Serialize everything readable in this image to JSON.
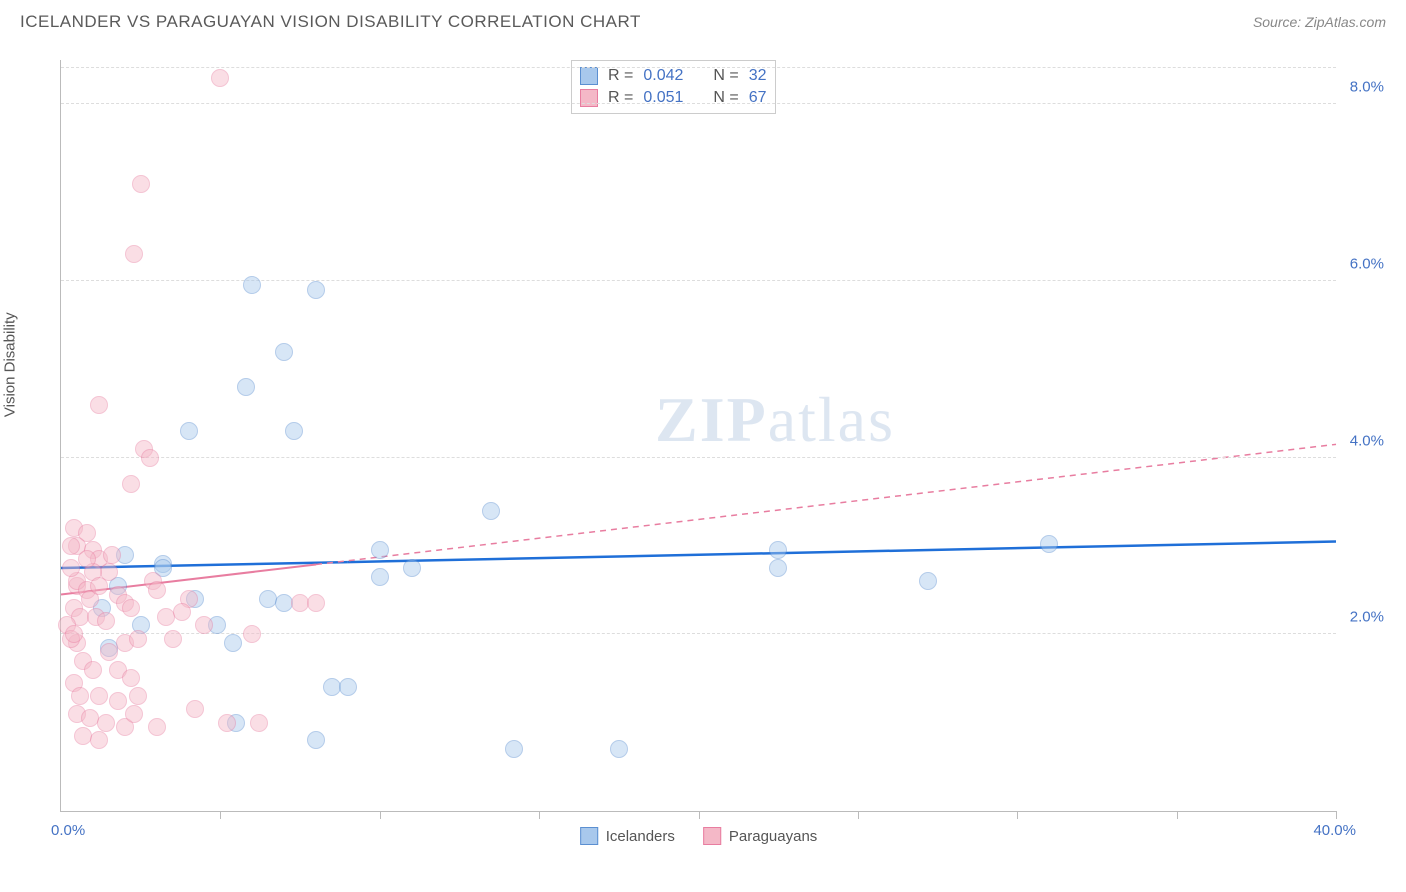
{
  "header": {
    "title": "ICELANDER VS PARAGUAYAN VISION DISABILITY CORRELATION CHART",
    "source": "Source: ZipAtlas.com"
  },
  "chart": {
    "type": "scatter",
    "ylabel": "Vision Disability",
    "xlim": [
      0,
      40
    ],
    "ylim": [
      0,
      8.5
    ],
    "xtick_positions": [
      0,
      5,
      10,
      15,
      20,
      25,
      30,
      35,
      40
    ],
    "ytick_labels": [
      {
        "y": 2.0,
        "label": "2.0%"
      },
      {
        "y": 4.0,
        "label": "4.0%"
      },
      {
        "y": 6.0,
        "label": "6.0%"
      },
      {
        "y": 8.0,
        "label": "8.0%"
      }
    ],
    "xaxis_min_label": "0.0%",
    "xaxis_max_label": "40.0%",
    "background_color": "#ffffff",
    "grid_color": "#dddddd",
    "marker_radius": 9,
    "marker_opacity": 0.45,
    "watermark": "ZIPatlas",
    "series": [
      {
        "name": "Icelanders",
        "color_fill": "#a8c8ec",
        "color_stroke": "#5b8fd1",
        "trend_color": "#1f6fd8",
        "trend_style": "solid",
        "trend": {
          "y_at_x0": 2.75,
          "y_at_xmax": 3.05
        },
        "trend_solid_until_x": 9.0,
        "R": "0.042",
        "N": "32",
        "points": [
          [
            6.0,
            5.95
          ],
          [
            8.0,
            5.9
          ],
          [
            7.0,
            5.2
          ],
          [
            5.8,
            4.8
          ],
          [
            4.0,
            4.3
          ],
          [
            7.3,
            4.3
          ],
          [
            10.0,
            2.95
          ],
          [
            11.0,
            2.75
          ],
          [
            10.0,
            2.65
          ],
          [
            13.5,
            3.4
          ],
          [
            22.5,
            2.95
          ],
          [
            22.5,
            2.75
          ],
          [
            27.2,
            2.6
          ],
          [
            31.0,
            3.02
          ],
          [
            17.5,
            0.7
          ],
          [
            14.2,
            0.7
          ],
          [
            8.0,
            0.8
          ],
          [
            8.5,
            1.4
          ],
          [
            9.0,
            1.4
          ],
          [
            5.5,
            1.0
          ],
          [
            5.4,
            1.9
          ],
          [
            3.2,
            2.8
          ],
          [
            4.2,
            2.4
          ],
          [
            2.5,
            2.1
          ],
          [
            3.2,
            2.75
          ],
          [
            1.8,
            2.55
          ],
          [
            2.0,
            2.9
          ],
          [
            1.3,
            2.3
          ],
          [
            6.5,
            2.4
          ],
          [
            7.0,
            2.35
          ],
          [
            4.9,
            2.1
          ],
          [
            1.5,
            1.85
          ]
        ]
      },
      {
        "name": "Paraguayans",
        "color_fill": "#f4b8c7",
        "color_stroke": "#e87da0",
        "trend_color": "#e87da0",
        "trend_style": "dashed",
        "trend": {
          "y_at_x0": 2.45,
          "y_at_xmax": 4.15
        },
        "trend_solid_until_x": 8.0,
        "R": "0.051",
        "N": "67",
        "points": [
          [
            5.0,
            8.3
          ],
          [
            2.5,
            7.1
          ],
          [
            2.3,
            6.3
          ],
          [
            1.2,
            4.6
          ],
          [
            2.6,
            4.1
          ],
          [
            2.8,
            4.0
          ],
          [
            2.2,
            3.7
          ],
          [
            0.4,
            3.2
          ],
          [
            0.8,
            3.15
          ],
          [
            0.5,
            3.0
          ],
          [
            1.0,
            2.95
          ],
          [
            0.3,
            3.0
          ],
          [
            1.2,
            2.85
          ],
          [
            1.5,
            2.7
          ],
          [
            0.5,
            2.55
          ],
          [
            0.5,
            2.6
          ],
          [
            0.8,
            2.5
          ],
          [
            0.9,
            2.4
          ],
          [
            1.8,
            2.45
          ],
          [
            2.0,
            2.35
          ],
          [
            0.4,
            2.3
          ],
          [
            0.6,
            2.2
          ],
          [
            1.1,
            2.2
          ],
          [
            1.4,
            2.15
          ],
          [
            2.2,
            2.3
          ],
          [
            2.9,
            2.6
          ],
          [
            3.3,
            2.2
          ],
          [
            4.0,
            2.4
          ],
          [
            4.5,
            2.1
          ],
          [
            3.8,
            2.25
          ],
          [
            3.5,
            1.95
          ],
          [
            2.0,
            1.9
          ],
          [
            0.5,
            1.9
          ],
          [
            0.7,
            1.7
          ],
          [
            1.0,
            1.6
          ],
          [
            1.5,
            1.8
          ],
          [
            1.8,
            1.6
          ],
          [
            2.2,
            1.5
          ],
          [
            0.4,
            1.45
          ],
          [
            0.6,
            1.3
          ],
          [
            1.2,
            1.3
          ],
          [
            1.8,
            1.25
          ],
          [
            2.4,
            1.3
          ],
          [
            0.5,
            1.1
          ],
          [
            0.9,
            1.05
          ],
          [
            1.4,
            1.0
          ],
          [
            2.0,
            0.95
          ],
          [
            2.3,
            1.1
          ],
          [
            0.7,
            0.85
          ],
          [
            1.2,
            0.8
          ],
          [
            5.2,
            1.0
          ],
          [
            6.2,
            1.0
          ],
          [
            7.5,
            2.35
          ],
          [
            8.0,
            2.35
          ],
          [
            3.0,
            2.5
          ],
          [
            0.3,
            2.75
          ],
          [
            0.2,
            2.1
          ],
          [
            0.3,
            1.95
          ],
          [
            1.0,
            2.7
          ],
          [
            1.2,
            2.55
          ],
          [
            1.6,
            2.9
          ],
          [
            0.4,
            2.0
          ],
          [
            0.8,
            2.85
          ],
          [
            2.4,
            1.95
          ],
          [
            6.0,
            2.0
          ],
          [
            4.2,
            1.15
          ],
          [
            3.0,
            0.95
          ]
        ]
      }
    ],
    "legend": {
      "items": [
        "Icelanders",
        "Paraguayans"
      ]
    },
    "stats_labels": {
      "R": "R =",
      "N": "N ="
    }
  }
}
